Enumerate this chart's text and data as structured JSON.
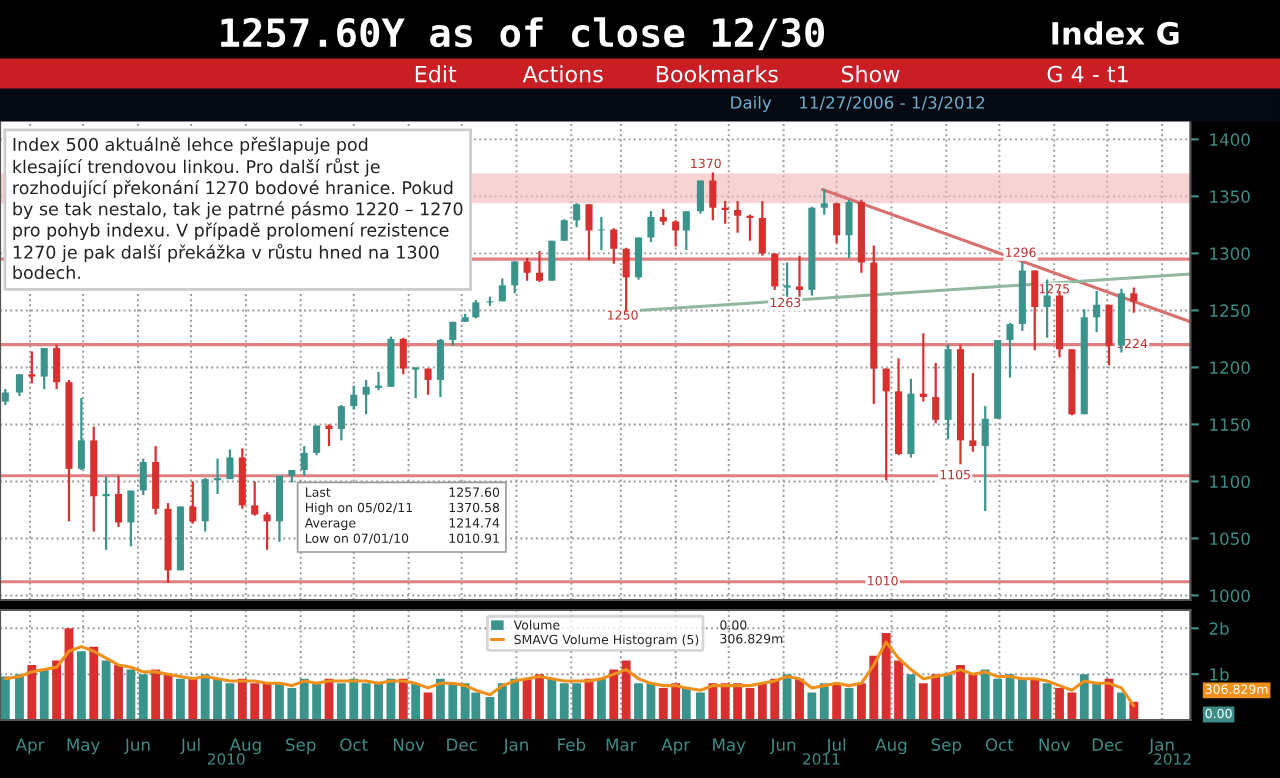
{
  "chart_data": [
    {
      "type": "candlestick",
      "title": "1257.60Y as of close 12/30",
      "subtitle": "Daily     11/27/2006 - 1/3/2012",
      "x": [
        "2010-04-01",
        "2010-04-09",
        "2010-04-16",
        "2010-04-23",
        "2010-04-30",
        "2010-05-07",
        "2010-05-14",
        "2010-05-21",
        "2010-05-28",
        "2010-06-04",
        "2010-06-11",
        "2010-06-18",
        "2010-06-25",
        "2010-07-02",
        "2010-07-09",
        "2010-07-16",
        "2010-07-23",
        "2010-07-30",
        "2010-08-06",
        "2010-08-13",
        "2010-08-20",
        "2010-08-27",
        "2010-09-03",
        "2010-09-10",
        "2010-09-17",
        "2010-09-24",
        "2010-10-01",
        "2010-10-08",
        "2010-10-15",
        "2010-10-22",
        "2010-10-29",
        "2010-11-05",
        "2010-11-12",
        "2010-11-19",
        "2010-11-26",
        "2010-12-03",
        "2010-12-10",
        "2010-12-17",
        "2010-12-23",
        "2010-12-31",
        "2011-01-07",
        "2011-01-14",
        "2011-01-21",
        "2011-01-28",
        "2011-02-04",
        "2011-02-11",
        "2011-02-18",
        "2011-02-25",
        "2011-03-04",
        "2011-03-11",
        "2011-03-18",
        "2011-03-25",
        "2011-04-01",
        "2011-04-08",
        "2011-04-15",
        "2011-04-21",
        "2011-04-29",
        "2011-05-06",
        "2011-05-13",
        "2011-05-20",
        "2011-05-27",
        "2011-06-03",
        "2011-06-10",
        "2011-06-17",
        "2011-06-24",
        "2011-07-01",
        "2011-07-08",
        "2011-07-15",
        "2011-07-22",
        "2011-07-29",
        "2011-08-05",
        "2011-08-12",
        "2011-08-19",
        "2011-08-26",
        "2011-09-02",
        "2011-09-09",
        "2011-09-16",
        "2011-09-23",
        "2011-09-30",
        "2011-10-07",
        "2011-10-14",
        "2011-10-21",
        "2011-10-28",
        "2011-11-04",
        "2011-11-11",
        "2011-11-18",
        "2011-11-25",
        "2011-12-02",
        "2011-12-09",
        "2011-12-16",
        "2011-12-23",
        "2011-12-30"
      ],
      "ohlc": [
        [
          1170,
          1181,
          1167,
          1178
        ],
        [
          1178,
          1194,
          1175,
          1194
        ],
        [
          1194,
          1214,
          1186,
          1192
        ],
        [
          1192,
          1217,
          1181,
          1217
        ],
        [
          1217,
          1220,
          1181,
          1187
        ],
        [
          1187,
          1189,
          1065,
          1111
        ],
        [
          1111,
          1173,
          1110,
          1136
        ],
        [
          1136,
          1148,
          1056,
          1087
        ],
        [
          1087,
          1104,
          1040,
          1089
        ],
        [
          1089,
          1105,
          1060,
          1064
        ],
        [
          1064,
          1092,
          1043,
          1092
        ],
        [
          1092,
          1120,
          1088,
          1117
        ],
        [
          1117,
          1131,
          1071,
          1076
        ],
        [
          1076,
          1081,
          1011,
          1022
        ],
        [
          1022,
          1078,
          1022,
          1078
        ],
        [
          1078,
          1100,
          1063,
          1065
        ],
        [
          1065,
          1103,
          1056,
          1102
        ],
        [
          1102,
          1120,
          1089,
          1102
        ],
        [
          1102,
          1128,
          1102,
          1121
        ],
        [
          1121,
          1129,
          1076,
          1079
        ],
        [
          1079,
          1100,
          1070,
          1071
        ],
        [
          1071,
          1073,
          1040,
          1065
        ],
        [
          1065,
          1105,
          1047,
          1105
        ],
        [
          1105,
          1110,
          1099,
          1110
        ],
        [
          1110,
          1131,
          1105,
          1125
        ],
        [
          1125,
          1149,
          1123,
          1149
        ],
        [
          1149,
          1150,
          1131,
          1146
        ],
        [
          1146,
          1167,
          1136,
          1166
        ],
        [
          1166,
          1184,
          1163,
          1176
        ],
        [
          1176,
          1189,
          1159,
          1183
        ],
        [
          1183,
          1196,
          1180,
          1183
        ],
        [
          1183,
          1227,
          1183,
          1225
        ],
        [
          1225,
          1226,
          1194,
          1199
        ],
        [
          1199,
          1200,
          1173,
          1199
        ],
        [
          1199,
          1199,
          1176,
          1189
        ],
        [
          1189,
          1225,
          1174,
          1224
        ],
        [
          1224,
          1240,
          1219,
          1240
        ],
        [
          1240,
          1247,
          1240,
          1244
        ],
        [
          1244,
          1259,
          1243,
          1257
        ],
        [
          1257,
          1262,
          1254,
          1258
        ],
        [
          1258,
          1278,
          1258,
          1272
        ],
        [
          1272,
          1293,
          1265,
          1293
        ],
        [
          1293,
          1296,
          1276,
          1283
        ],
        [
          1283,
          1302,
          1275,
          1276
        ],
        [
          1276,
          1311,
          1276,
          1311
        ],
        [
          1311,
          1330,
          1311,
          1329
        ],
        [
          1329,
          1344,
          1323,
          1343
        ],
        [
          1343,
          1343,
          1294,
          1320
        ],
        [
          1320,
          1332,
          1303,
          1321
        ],
        [
          1321,
          1322,
          1291,
          1304
        ],
        [
          1304,
          1305,
          1249,
          1279
        ],
        [
          1279,
          1314,
          1277,
          1314
        ],
        [
          1314,
          1337,
          1310,
          1332
        ],
        [
          1332,
          1339,
          1325,
          1328
        ],
        [
          1328,
          1329,
          1306,
          1320
        ],
        [
          1320,
          1337,
          1303,
          1337
        ],
        [
          1337,
          1364,
          1335,
          1364
        ],
        [
          1364,
          1371,
          1329,
          1340
        ],
        [
          1340,
          1346,
          1326,
          1338
        ],
        [
          1338,
          1346,
          1318,
          1333
        ],
        [
          1333,
          1334,
          1311,
          1331
        ],
        [
          1331,
          1346,
          1298,
          1300
        ],
        [
          1300,
          1300,
          1268,
          1271
        ],
        [
          1271,
          1292,
          1262,
          1271
        ],
        [
          1271,
          1298,
          1262,
          1268
        ],
        [
          1268,
          1341,
          1263,
          1340
        ],
        [
          1340,
          1356,
          1334,
          1344
        ],
        [
          1344,
          1344,
          1309,
          1316
        ],
        [
          1316,
          1347,
          1296,
          1345
        ],
        [
          1345,
          1347,
          1283,
          1292
        ],
        [
          1292,
          1307,
          1168,
          1199
        ],
        [
          1199,
          1199,
          1101,
          1179
        ],
        [
          1179,
          1208,
          1123,
          1124
        ],
        [
          1124,
          1190,
          1121,
          1177
        ],
        [
          1177,
          1230,
          1170,
          1174
        ],
        [
          1174,
          1204,
          1151,
          1154
        ],
        [
          1154,
          1220,
          1137,
          1216
        ],
        [
          1216,
          1220,
          1115,
          1136
        ],
        [
          1136,
          1195,
          1126,
          1131
        ],
        [
          1131,
          1166,
          1074,
          1155
        ],
        [
          1155,
          1224,
          1155,
          1224
        ],
        [
          1224,
          1239,
          1191,
          1238
        ],
        [
          1238,
          1293,
          1232,
          1285
        ],
        [
          1285,
          1285,
          1215,
          1253
        ],
        [
          1253,
          1277,
          1226,
          1263
        ],
        [
          1263,
          1267,
          1209,
          1216
        ],
        [
          1216,
          1216,
          1158,
          1159
        ],
        [
          1159,
          1251,
          1159,
          1244
        ],
        [
          1244,
          1267,
          1231,
          1255
        ],
        [
          1255,
          1255,
          1202,
          1219
        ],
        [
          1219,
          1269,
          1213,
          1265
        ],
        [
          1265,
          1270,
          1248,
          1258
        ]
      ],
      "colors": [
        "#3b948c",
        "#3b948c",
        "#d8302f",
        "#3b948c",
        "#d8302f",
        "#d8302f",
        "#3b948c",
        "#d8302f",
        "#3b948c",
        "#d8302f",
        "#3b948c",
        "#3b948c",
        "#d8302f",
        "#d8302f",
        "#3b948c",
        "#d8302f",
        "#3b948c",
        "#3b948c",
        "#3b948c",
        "#d8302f",
        "#d8302f",
        "#d8302f",
        "#3b948c",
        "#3b948c",
        "#3b948c",
        "#3b948c",
        "#d8302f",
        "#3b948c",
        "#3b948c",
        "#3b948c",
        "#3b948c",
        "#3b948c",
        "#d8302f",
        "#3b948c",
        "#d8302f",
        "#3b948c",
        "#3b948c",
        "#3b948c",
        "#3b948c",
        "#3b948c",
        "#3b948c",
        "#3b948c",
        "#d8302f",
        "#d8302f",
        "#3b948c",
        "#3b948c",
        "#3b948c",
        "#d8302f",
        "#3b948c",
        "#d8302f",
        "#d8302f",
        "#3b948c",
        "#3b948c",
        "#d8302f",
        "#d8302f",
        "#3b948c",
        "#3b948c",
        "#d8302f",
        "#d8302f",
        "#d8302f",
        "#d8302f",
        "#d8302f",
        "#d8302f",
        "#3b948c",
        "#d8302f",
        "#3b948c",
        "#3b948c",
        "#d8302f",
        "#3b948c",
        "#d8302f",
        "#d8302f",
        "#d8302f",
        "#d8302f",
        "#3b948c",
        "#d8302f",
        "#d8302f",
        "#3b948c",
        "#d8302f",
        "#d8302f",
        "#3b948c",
        "#3b948c",
        "#3b948c",
        "#3b948c",
        "#d8302f",
        "#3b948c",
        "#d8302f",
        "#d8302f",
        "#3b948c",
        "#3b948c",
        "#d8302f",
        "#3b948c",
        "#d8302f"
      ],
      "series": [
        {
          "type": "line",
          "color": "#d87070",
          "x": [
            "2011-07-07",
            "2012-01-31"
          ],
          "values": [
            1356,
            1240
          ]
        },
        {
          "type": "line",
          "color": "#8fb89c",
          "x": [
            "2011-03-16",
            "2012-01-31"
          ],
          "values": [
            1249,
            1282
          ]
        }
      ],
      "bands": [
        {
          "axis": "y",
          "from": 1344,
          "to": 1370,
          "color": "#f4b6b6"
        }
      ],
      "ref_lines": [
        {
          "axis": "y",
          "value": 1295,
          "color": "#e08080"
        },
        {
          "axis": "y",
          "value": 1220,
          "color": "#e08080"
        },
        {
          "axis": "y",
          "value": 1105,
          "color": "#e08080"
        },
        {
          "axis": "y",
          "value": 1012,
          "color": "#e08080"
        }
      ],
      "xlim": [
        "2010-03-29",
        "2012-01-31"
      ],
      "xticks": [
        {
          "value": "2010-04-15",
          "label": null
        },
        {
          "value": "2010-05-15",
          "label": null
        },
        {
          "value": "2010-06-15",
          "label": null
        },
        {
          "value": "2010-07-15",
          "label": null
        },
        {
          "value": "2010-08-15",
          "label": null
        },
        {
          "value": "2010-09-15",
          "label": null
        },
        {
          "value": "2010-10-15",
          "label": null
        },
        {
          "value": "2010-11-15",
          "label": null
        },
        {
          "value": "2010-12-15",
          "label": null
        },
        {
          "value": "2011-01-15",
          "label": null
        },
        {
          "value": "2011-02-15",
          "label": null
        },
        {
          "value": "2011-03-15",
          "label": null
        },
        {
          "value": "2011-04-15",
          "label": null
        },
        {
          "value": "2011-05-15",
          "label": null
        },
        {
          "value": "2011-06-15",
          "label": null
        },
        {
          "value": "2011-07-15",
          "label": null
        },
        {
          "value": "2011-08-15",
          "label": null
        },
        {
          "value": "2011-09-15",
          "label": null
        },
        {
          "value": "2011-10-15",
          "label": null
        },
        {
          "value": "2011-11-15",
          "label": null
        },
        {
          "value": "2011-12-15",
          "label": null
        },
        {
          "value": "2012-01-15",
          "label": null
        }
      ],
      "ylim": [
        996,
        1417
      ],
      "yticks": [
        1000,
        1050,
        1100,
        1150,
        1200,
        1250,
        1300,
        1350,
        1400
      ],
      "tick_labels": "y",
      "grid": true,
      "annotations": [
        "Index G",
        "Edit",
        "Actions",
        "Bookmarks",
        "Show",
        "G 4 - t1",
        "Index 500 aktuálně lehce přešlapuje pod\nklesající trendovou linkou. Pro další růst je\nrozhodující překonání 1270 bodové hranice. Pokud\nby se tak nestalo, tak je patrné pásmo 1220 – 1270\npro pohyb indexu. V případě prolomení rezistence\n1270 je pak další překážka v růstu hned na 1300\nbodech.",
        "Last",
        "1257.60",
        "High on 05/02/11",
        "1370.58",
        "Average",
        "1214.74",
        "Low on 07/01/10",
        "1010.91",
        {
          "text": "1370",
          "x": "2011-05-02",
          "y": 1378
        },
        {
          "text": "1250",
          "x": "2011-03-16",
          "y": 1245
        },
        {
          "text": "1263",
          "x": "2011-06-16",
          "y": 1256
        },
        {
          "text": "1296",
          "x": "2011-10-27",
          "y": 1300
        },
        {
          "text": "1275",
          "x": "2011-11-15",
          "y": 1268
        },
        {
          "text": "1224",
          "x": "2011-12-29",
          "y": 1220
        },
        {
          "text": "1105",
          "x": "2011-09-20",
          "y": 1105
        },
        {
          "text": "1010",
          "x": "2011-08-10",
          "y": 1012
        }
      ]
    },
    {
      "type": "bar",
      "x": [
        "2010-04-01",
        "2010-04-09",
        "2010-04-16",
        "2010-04-23",
        "2010-04-30",
        "2010-05-07",
        "2010-05-14",
        "2010-05-21",
        "2010-05-28",
        "2010-06-04",
        "2010-06-11",
        "2010-06-18",
        "2010-06-25",
        "2010-07-02",
        "2010-07-09",
        "2010-07-16",
        "2010-07-23",
        "2010-07-30",
        "2010-08-06",
        "2010-08-13",
        "2010-08-20",
        "2010-08-27",
        "2010-09-03",
        "2010-09-10",
        "2010-09-17",
        "2010-09-24",
        "2010-10-01",
        "2010-10-08",
        "2010-10-15",
        "2010-10-22",
        "2010-10-29",
        "2010-11-05",
        "2010-11-12",
        "2010-11-19",
        "2010-11-26",
        "2010-12-03",
        "2010-12-10",
        "2010-12-17",
        "2010-12-23",
        "2010-12-31",
        "2011-01-07",
        "2011-01-14",
        "2011-01-21",
        "2011-01-28",
        "2011-02-04",
        "2011-02-11",
        "2011-02-18",
        "2011-02-25",
        "2011-03-04",
        "2011-03-11",
        "2011-03-18",
        "2011-03-25",
        "2011-04-01",
        "2011-04-08",
        "2011-04-15",
        "2011-04-21",
        "2011-04-29",
        "2011-05-06",
        "2011-05-13",
        "2011-05-20",
        "2011-05-27",
        "2011-06-03",
        "2011-06-10",
        "2011-06-17",
        "2011-06-24",
        "2011-07-01",
        "2011-07-08",
        "2011-07-15",
        "2011-07-22",
        "2011-07-29",
        "2011-08-05",
        "2011-08-12",
        "2011-08-19",
        "2011-08-26",
        "2011-09-02",
        "2011-09-09",
        "2011-09-16",
        "2011-09-23",
        "2011-09-30",
        "2011-10-07",
        "2011-10-14",
        "2011-10-21",
        "2011-10-28",
        "2011-11-04",
        "2011-11-11",
        "2011-11-18",
        "2011-11-25",
        "2011-12-02",
        "2011-12-09",
        "2011-12-16",
        "2011-12-23",
        "2011-12-30"
      ],
      "series": [
        {
          "type": "bar",
          "name": "Volume",
          "color": "#3b948c",
          "colors": [
            "#3b948c",
            "#3b948c",
            "#d8302f",
            "#3b948c",
            "#d8302f",
            "#d8302f",
            "#3b948c",
            "#d8302f",
            "#3b948c",
            "#d8302f",
            "#3b948c",
            "#3b948c",
            "#d8302f",
            "#d8302f",
            "#3b948c",
            "#d8302f",
            "#3b948c",
            "#3b948c",
            "#3b948c",
            "#d8302f",
            "#d8302f",
            "#d8302f",
            "#3b948c",
            "#3b948c",
            "#3b948c",
            "#3b948c",
            "#d8302f",
            "#3b948c",
            "#3b948c",
            "#3b948c",
            "#3b948c",
            "#3b948c",
            "#d8302f",
            "#3b948c",
            "#d8302f",
            "#3b948c",
            "#3b948c",
            "#3b948c",
            "#3b948c",
            "#3b948c",
            "#3b948c",
            "#3b948c",
            "#d8302f",
            "#d8302f",
            "#3b948c",
            "#3b948c",
            "#3b948c",
            "#d8302f",
            "#3b948c",
            "#d8302f",
            "#d8302f",
            "#3b948c",
            "#3b948c",
            "#d8302f",
            "#d8302f",
            "#3b948c",
            "#3b948c",
            "#d8302f",
            "#d8302f",
            "#d8302f",
            "#d8302f",
            "#d8302f",
            "#d8302f",
            "#3b948c",
            "#d8302f",
            "#3b948c",
            "#3b948c",
            "#d8302f",
            "#3b948c",
            "#d8302f",
            "#d8302f",
            "#d8302f",
            "#d8302f",
            "#3b948c",
            "#d8302f",
            "#d8302f",
            "#3b948c",
            "#d8302f",
            "#d8302f",
            "#3b948c",
            "#3b948c",
            "#3b948c",
            "#3b948c",
            "#d8302f",
            "#3b948c",
            "#d8302f",
            "#d8302f",
            "#3b948c",
            "#3b948c",
            "#d8302f",
            "#3b948c",
            "#d8302f"
          ],
          "values": [
            0.95,
            1.0,
            1.2,
            1.1,
            1.3,
            2.0,
            1.5,
            1.6,
            1.3,
            1.2,
            1.1,
            1.0,
            1.1,
            1.0,
            0.9,
            0.9,
            1.0,
            0.9,
            0.8,
            0.9,
            0.8,
            0.8,
            0.8,
            0.7,
            0.9,
            0.8,
            0.9,
            0.8,
            0.9,
            0.8,
            0.8,
            0.9,
            0.9,
            0.8,
            0.6,
            0.9,
            0.8,
            0.8,
            0.6,
            0.5,
            0.8,
            0.9,
            0.9,
            1.0,
            0.9,
            0.8,
            0.8,
            0.9,
            0.9,
            1.1,
            1.3,
            0.8,
            0.8,
            0.7,
            0.8,
            0.7,
            0.6,
            0.8,
            0.8,
            0.8,
            0.7,
            0.8,
            0.9,
            1.0,
            0.9,
            0.6,
            0.8,
            0.8,
            0.7,
            0.8,
            1.4,
            1.9,
            1.3,
            1.0,
            0.8,
            1.0,
            1.0,
            1.2,
            1.0,
            1.1,
            0.9,
            1.0,
            0.9,
            0.9,
            0.8,
            0.7,
            0.6,
            1.0,
            0.8,
            0.9,
            0.6,
            0.4
          ]
        },
        {
          "type": "line",
          "name": "SMAVG Volume Histogram (5)",
          "color": "#f0901c",
          "values": [
            0.9,
            0.95,
            1.05,
            1.1,
            1.15,
            1.5,
            1.6,
            1.5,
            1.35,
            1.2,
            1.15,
            1.05,
            1.05,
            1.0,
            0.95,
            0.9,
            0.95,
            0.9,
            0.85,
            0.85,
            0.85,
            0.8,
            0.8,
            0.75,
            0.85,
            0.8,
            0.85,
            0.85,
            0.85,
            0.85,
            0.8,
            0.85,
            0.85,
            0.8,
            0.7,
            0.8,
            0.8,
            0.75,
            0.65,
            0.55,
            0.75,
            0.85,
            0.9,
            0.95,
            0.9,
            0.85,
            0.85,
            0.85,
            0.9,
            1.0,
            1.1,
            0.9,
            0.8,
            0.75,
            0.75,
            0.7,
            0.65,
            0.75,
            0.75,
            0.75,
            0.75,
            0.8,
            0.85,
            0.95,
            0.9,
            0.7,
            0.75,
            0.8,
            0.75,
            0.8,
            1.2,
            1.7,
            1.35,
            1.1,
            0.9,
            0.95,
            1.0,
            1.1,
            1.0,
            1.05,
            0.95,
            0.95,
            0.9,
            0.9,
            0.85,
            0.75,
            0.65,
            0.85,
            0.8,
            0.8,
            0.7,
            0.31
          ]
        }
      ],
      "xlim": [
        "2010-03-29",
        "2012-01-31"
      ],
      "xticks": [
        {
          "value": "2010-04-15",
          "label": "Apr"
        },
        {
          "value": "2010-05-15",
          "label": "May"
        },
        {
          "value": "2010-06-15",
          "label": "Jun"
        },
        {
          "value": "2010-07-15",
          "label": "Jul"
        },
        {
          "value": "2010-08-15",
          "label": "Aug"
        },
        {
          "value": "2010-09-15",
          "label": "Sep"
        },
        {
          "value": "2010-10-15",
          "label": "Oct"
        },
        {
          "value": "2010-11-15",
          "label": "Nov"
        },
        {
          "value": "2010-12-15",
          "label": "Dec"
        },
        {
          "value": "2011-01-15",
          "label": "Jan"
        },
        {
          "value": "2011-02-15",
          "label": "Feb"
        },
        {
          "value": "2011-03-15",
          "label": "Mar"
        },
        {
          "value": "2011-04-15",
          "label": "Apr"
        },
        {
          "value": "2011-05-15",
          "label": "May"
        },
        {
          "value": "2011-06-15",
          "label": "Jun"
        },
        {
          "value": "2011-07-15",
          "label": "Jul"
        },
        {
          "value": "2011-08-15",
          "label": "Aug"
        },
        {
          "value": "2011-09-15",
          "label": "Sep"
        },
        {
          "value": "2011-10-15",
          "label": "Oct"
        },
        {
          "value": "2011-11-15",
          "label": "Nov"
        },
        {
          "value": "2011-12-15",
          "label": "Dec"
        },
        {
          "value": "2012-01-15",
          "label": "Jan"
        }
      ],
      "ylim": [
        0,
        2.4
      ],
      "yticks": [
        {
          "value": 1,
          "label": "1b"
        },
        {
          "value": 2,
          "label": "2b"
        }
      ],
      "grid": true,
      "legend": "top",
      "annotations": [
        "0.00",
        "306.829m",
        "306.829m",
        "0.00",
        "2010",
        "2011",
        "2012"
      ]
    }
  ]
}
